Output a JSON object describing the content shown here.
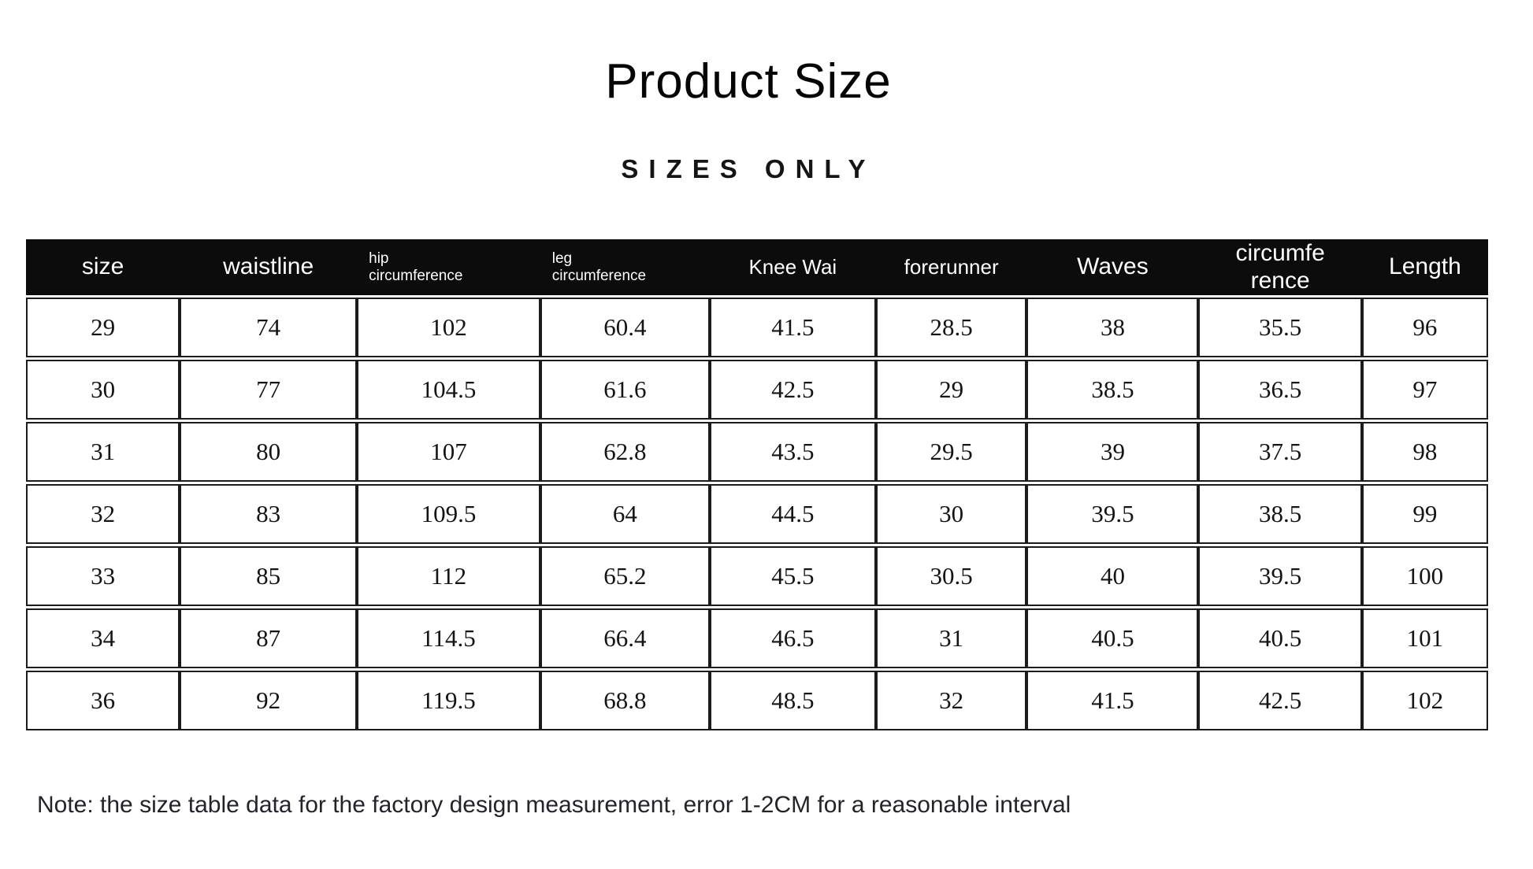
{
  "chart_data": {
    "type": "table",
    "title": "Product Size",
    "subtitle": "S I Z E S   O N L Y",
    "columns": [
      "size",
      "waistline",
      "hip circumference",
      "leg circumference",
      "Knee Wai",
      "forerunner",
      "Waves",
      "circumference",
      "Length"
    ],
    "rows": [
      [
        29,
        74,
        102,
        60.4,
        41.5,
        28.5,
        38,
        35.5,
        96
      ],
      [
        30,
        77,
        104.5,
        61.6,
        42.5,
        29,
        38.5,
        36.5,
        97
      ],
      [
        31,
        80,
        107,
        62.8,
        43.5,
        29.5,
        39,
        37.5,
        98
      ],
      [
        32,
        83,
        109.5,
        64,
        44.5,
        30,
        39.5,
        38.5,
        99
      ],
      [
        33,
        85,
        112,
        65.2,
        45.5,
        30.5,
        40,
        39.5,
        100
      ],
      [
        34,
        87,
        114.5,
        66.4,
        46.5,
        31,
        40.5,
        40.5,
        101
      ],
      [
        36,
        92,
        119.5,
        68.8,
        48.5,
        32,
        41.5,
        42.5,
        102
      ]
    ],
    "note": "Note: the size table data for the factory design measurement, error 1-2CM for a reasonable interval",
    "layout_hints": {
      "legend": "none",
      "grid": "all-cell-borders",
      "header_position": "top-row"
    }
  },
  "page": {
    "title": "Product Size",
    "subtitle": "SIZES ONLY",
    "note": "Note: the size table data for the factory design measurement, error 1-2CM for a reasonable interval"
  },
  "table_display": {
    "header_cells": [
      {
        "key": "size",
        "lines": [
          "size"
        ],
        "style": "lg",
        "align": "center"
      },
      {
        "key": "waistline",
        "lines": [
          "waistline"
        ],
        "style": "lg",
        "align": "center"
      },
      {
        "key": "hip-circumference",
        "lines": [
          "hip",
          "circumference"
        ],
        "style": "sm",
        "align": "left"
      },
      {
        "key": "leg-circumference",
        "lines": [
          "leg",
          "circumference"
        ],
        "style": "sm",
        "align": "left"
      },
      {
        "key": "knee-wai",
        "lines": [
          "Knee Wai"
        ],
        "style": "md",
        "align": "center"
      },
      {
        "key": "forerunner",
        "lines": [
          "forerunner"
        ],
        "style": "md",
        "align": "center"
      },
      {
        "key": "waves",
        "lines": [
          "Waves"
        ],
        "style": "lg",
        "align": "center"
      },
      {
        "key": "circumference",
        "lines": [
          "circumfe",
          "rence"
        ],
        "style": "lg",
        "align": "center"
      },
      {
        "key": "length",
        "lines": [
          "Length"
        ],
        "style": "lg",
        "align": "center"
      }
    ]
  },
  "colors": {
    "header_bg": "#0c0c0c",
    "header_text": "#ffffff",
    "cell_border": "#1c1c1c",
    "body_text": "#141414",
    "page_bg": "#ffffff"
  }
}
